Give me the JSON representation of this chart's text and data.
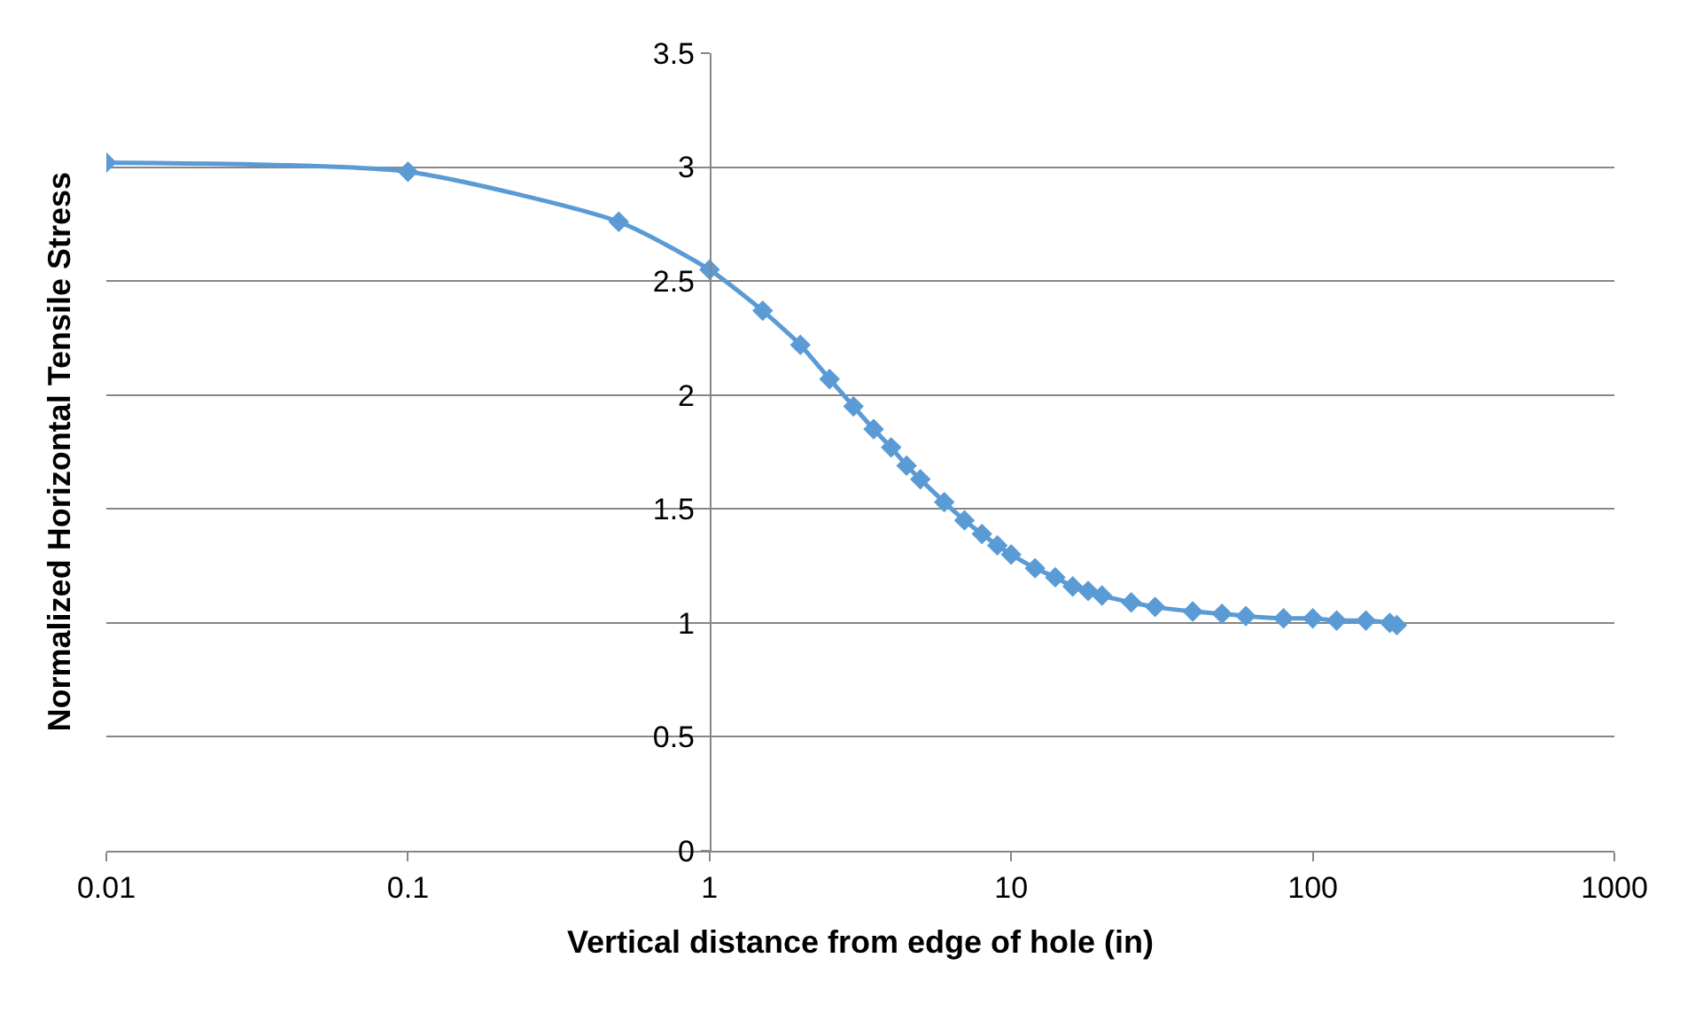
{
  "chart_data": {
    "type": "line",
    "xlabel": "Vertical distance from edge of hole (in)",
    "ylabel": "Normalized Horizontal Tensile Stress",
    "log": "x",
    "grid": "y",
    "marker": "diamond",
    "line_style": "solid",
    "x": [
      0.01,
      0.1,
      0.5,
      1,
      1.5,
      2,
      2.5,
      3,
      3.5,
      4,
      4.5,
      5,
      6,
      7,
      8,
      9,
      10,
      12,
      14,
      16,
      18,
      20,
      25,
      30,
      40,
      50,
      60,
      80,
      100,
      120,
      150,
      180,
      190
    ],
    "series": [
      {
        "color": "#5b9bd5",
        "values": [
          3.02,
          2.98,
          2.76,
          2.55,
          2.37,
          2.22,
          2.07,
          1.95,
          1.85,
          1.77,
          1.69,
          1.63,
          1.53,
          1.45,
          1.39,
          1.34,
          1.3,
          1.24,
          1.2,
          1.16,
          1.14,
          1.12,
          1.09,
          1.07,
          1.05,
          1.04,
          1.03,
          1.02,
          1.02,
          1.01,
          1.01,
          1.0,
          0.99
        ]
      }
    ],
    "xlim": [
      0.01,
      1000
    ],
    "xticks": [
      0.01,
      0.1,
      1,
      10,
      100,
      1000
    ],
    "ylim": [
      0,
      3.5
    ],
    "yticks": [
      0,
      0.5,
      1,
      1.5,
      2,
      2.5,
      3,
      3.5
    ]
  }
}
